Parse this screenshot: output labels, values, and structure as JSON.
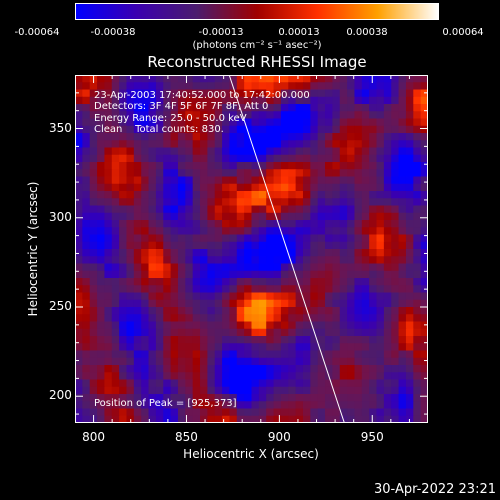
{
  "colorbar": {
    "ticks": [
      "-0.00064",
      "-0.00038",
      "-0.00013",
      "0.00013",
      "0.00038",
      "0.00064"
    ],
    "unit": "(photons cm⁻² s⁻¹ asec⁻²)",
    "colors": [
      "#0000ff",
      "#3a00b0",
      "#4b1c6e",
      "#a00000",
      "#ff3000",
      "#ffa000",
      "#ffffff"
    ]
  },
  "annotations": {
    "time_range": "23-Apr-2003 17:40:52.000 to 17:42:00.000",
    "detectors": "Detectors: 3F 4F 5F 6F 7F 8F, Att 0",
    "energy_range": "Energy Range: 25.0 - 50.0 keV",
    "clean": "Clean    Total counts: 830.",
    "peak": "Position of Peak = [925,373]"
  },
  "timestamp": "30-Apr-2022 23:21",
  "chart_data": {
    "type": "heatmap",
    "title": "Reconstructed RHESSI Image",
    "xlabel": "Heliocentric X (arcsec)",
    "ylabel": "Heliocentric Y (arcsec)",
    "xlim": [
      790,
      980
    ],
    "ylim": [
      185,
      380
    ],
    "xticks": [
      800,
      850,
      900,
      950
    ],
    "yticks": [
      200,
      250,
      300,
      350
    ],
    "limb_line": {
      "x": [
        873,
        935
      ],
      "y": [
        380,
        185
      ]
    },
    "peak": {
      "x": 925,
      "y": 373
    },
    "value_range": [
      -0.00064,
      0.00064
    ]
  }
}
